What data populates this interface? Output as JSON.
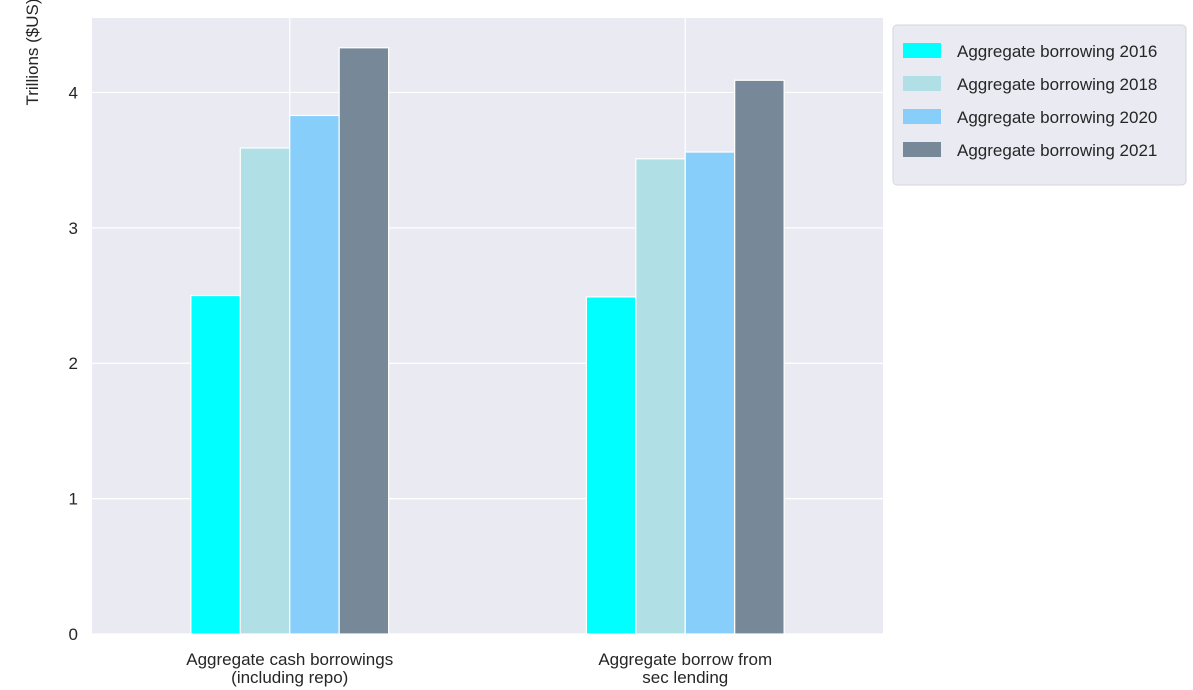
{
  "chart_data": {
    "type": "bar",
    "title": "",
    "xlabel": "",
    "ylabel": "Trillions ($US)",
    "categories": [
      [
        "Aggregate cash borrowings",
        "(including repo)"
      ],
      [
        "Aggregate borrow from",
        "sec lending"
      ]
    ],
    "series": [
      {
        "name": "Aggregate borrowing 2016",
        "color": "#00FFFF",
        "values": [
          2.5,
          2.49
        ]
      },
      {
        "name": "Aggregate borrowing 2018",
        "color": "#B0DFE5",
        "values": [
          3.59,
          3.51
        ]
      },
      {
        "name": "Aggregate borrowing 2020",
        "color": "#87CEFA",
        "values": [
          3.83,
          3.56
        ]
      },
      {
        "name": "Aggregate borrowing 2021",
        "color": "#778899",
        "values": [
          4.33,
          4.09
        ]
      }
    ],
    "ylim": [
      0,
      4.55
    ],
    "yticks": [
      "0",
      "1",
      "2",
      "3",
      "4"
    ],
    "grid": true,
    "legend_position": "outside-top-right",
    "background": "#EAEAF2"
  }
}
